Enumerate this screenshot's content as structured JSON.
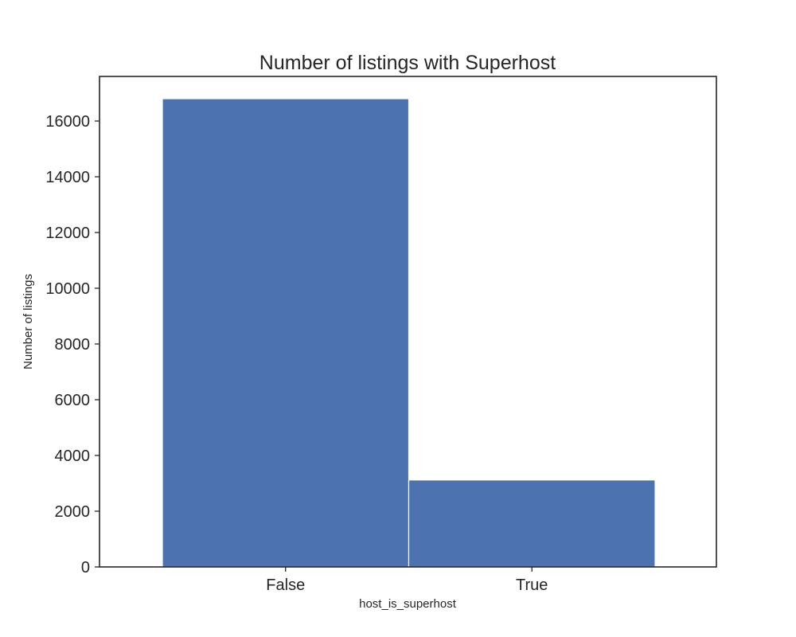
{
  "chart_data": {
    "type": "bar",
    "title": "Number of listings with Superhost",
    "xlabel": "host_is_superhost",
    "ylabel": "Number of listings",
    "categories": [
      "False",
      "True"
    ],
    "values": [
      16800,
      3120
    ],
    "ylim": [
      0,
      17600
    ],
    "yticks": [
      0,
      2000,
      4000,
      6000,
      8000,
      10000,
      12000,
      14000,
      16000
    ],
    "ytick_labels": [
      "0",
      "2000",
      "4000",
      "6000",
      "8000",
      "10000",
      "12000",
      "14000",
      "16000"
    ],
    "bar_color": "#4c72b0",
    "grid": false,
    "legend": false
  }
}
